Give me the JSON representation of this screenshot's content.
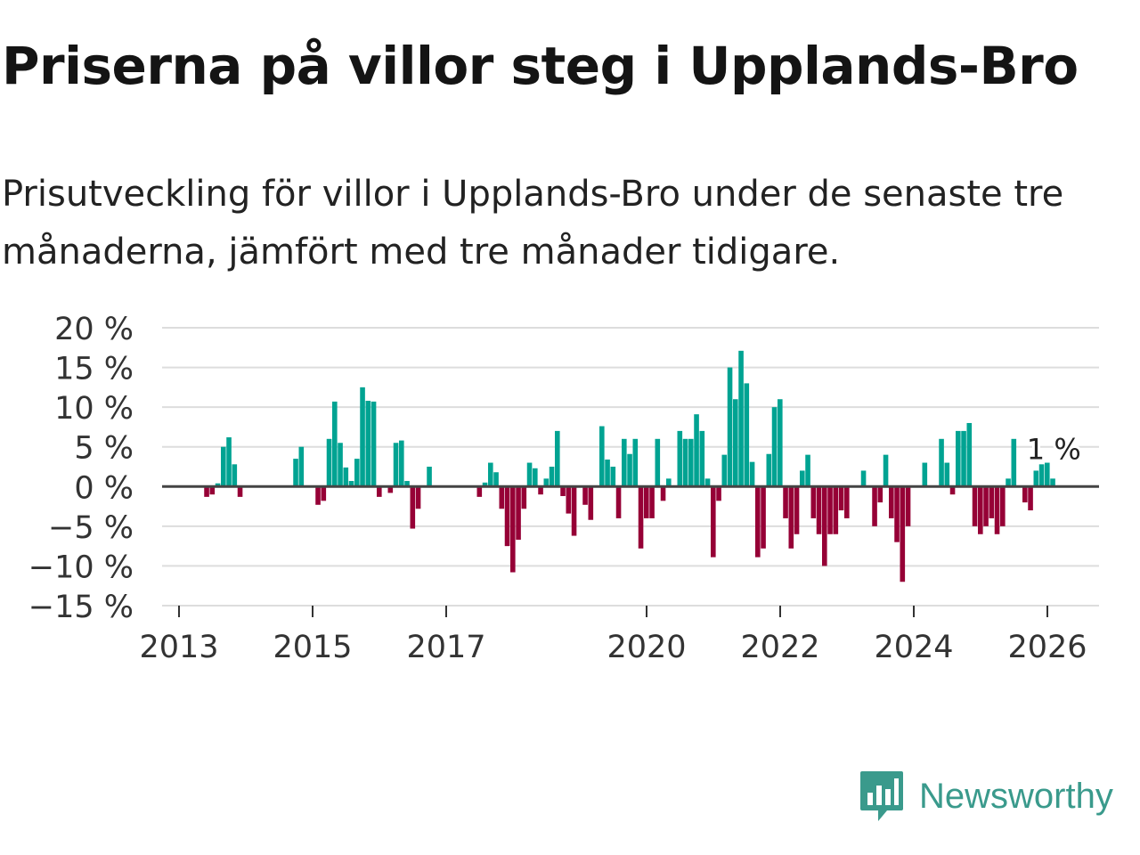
{
  "title": "Priserna på villor steg i Upplands-Bro",
  "subtitle": "Prisutveckling för villor i Upplands-Bro under de senaste tre månaderna, jämfört med tre månader tidigare.",
  "brand": "Newsworthy",
  "colors": {
    "positive": "#00a392",
    "negative": "#960036",
    "grid": "#dddddd",
    "zero": "#444444",
    "brand": "#3a9a8c"
  },
  "chart_data": {
    "type": "bar",
    "start_month": "2013-01",
    "frequency": "monthly",
    "values": [
      0,
      0,
      0,
      0,
      0,
      -1.3,
      -1,
      0.4,
      5,
      6.2,
      2.8,
      -1.3,
      0,
      0,
      0,
      0,
      0,
      0,
      0,
      0,
      0,
      3.5,
      5,
      0,
      0,
      -2.3,
      -1.8,
      6,
      10.7,
      5.5,
      2.4,
      0.7,
      3.5,
      12.5,
      10.8,
      10.7,
      -1.3,
      0,
      -0.8,
      5.5,
      5.8,
      0.7,
      -5.3,
      -2.8,
      0,
      2.5,
      0,
      0,
      0,
      0,
      0,
      0,
      0,
      0,
      -1.3,
      0.5,
      3,
      1.8,
      -2.8,
      -7.5,
      -10.8,
      -6.7,
      -2.8,
      3,
      2.3,
      -1,
      1,
      2.5,
      7,
      -1.2,
      -3.4,
      -6.2,
      0,
      -2.3,
      -4.2,
      0,
      7.6,
      3.4,
      2.5,
      -4,
      6,
      4.1,
      6,
      -7.8,
      -4,
      -4,
      6,
      -1.8,
      1,
      0,
      7,
      6,
      6,
      9.1,
      7,
      1,
      -8.9,
      -1.8,
      4,
      15,
      11,
      17.1,
      13,
      3.1,
      -8.9,
      -7.8,
      4.1,
      10,
      11,
      -4,
      -7.8,
      -6,
      2,
      4,
      -4,
      -6,
      -10,
      -6,
      -6,
      -3,
      -4,
      0,
      0,
      2,
      0,
      -5,
      -2,
      4,
      -4,
      -7,
      -12,
      -5,
      0,
      0,
      3,
      0,
      0,
      6,
      3,
      -1,
      7,
      7,
      8,
      -5,
      -6,
      -5,
      -4,
      -6,
      -5,
      1,
      6,
      0,
      -2,
      -3,
      2,
      2.8,
      3,
      1
    ],
    "ylim": [
      -15,
      20
    ],
    "yticks": [
      20,
      15,
      10,
      5,
      0,
      -5,
      -10,
      -15
    ],
    "ytick_labels": [
      "20 %",
      "15 %",
      "10 %",
      "5 %",
      "0 %",
      "−5 %",
      "−10 %",
      "−15 %"
    ],
    "xticks": [
      {
        "label": "2013",
        "month_index": 0
      },
      {
        "label": "2015",
        "month_index": 24
      },
      {
        "label": "2017",
        "month_index": 48
      },
      {
        "label": "2020",
        "month_index": 84
      },
      {
        "label": "2022",
        "month_index": 108
      },
      {
        "label": "2024",
        "month_index": 132
      },
      {
        "label": "2026",
        "month_index": 156
      }
    ],
    "annotation": "1 %",
    "grid": true,
    "xlabel": "",
    "ylabel": ""
  }
}
